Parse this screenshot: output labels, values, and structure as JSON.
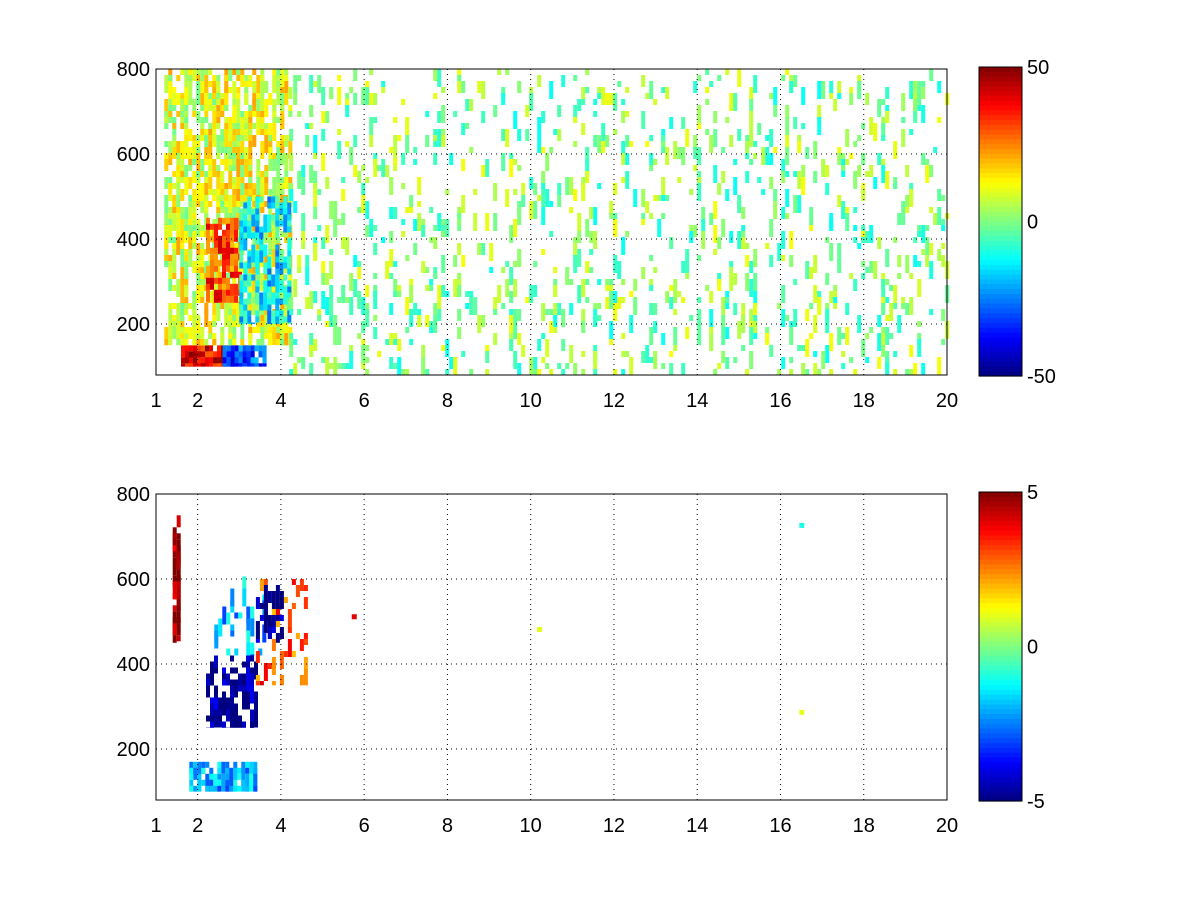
{
  "chart_data": [
    {
      "type": "heatmap",
      "title": "",
      "xlabel": "",
      "ylabel": "",
      "x_ticks": [
        "1",
        "2",
        "4",
        "6",
        "8",
        "10",
        "12",
        "14",
        "16",
        "18",
        "20"
      ],
      "x_tick_values": [
        1,
        2,
        4,
        6,
        8,
        10,
        12,
        14,
        16,
        18,
        20
      ],
      "y_ticks": [
        "200",
        "400",
        "600",
        "800"
      ],
      "y_tick_values": [
        200,
        400,
        600,
        800
      ],
      "xlim": [
        1,
        20
      ],
      "ylim": [
        80,
        800
      ],
      "grid": true,
      "grid_style": "dotted",
      "colormap": "jet",
      "colorbar": {
        "min": -50,
        "max": 50,
        "ticks": [
          "50",
          "0",
          "-50"
        ],
        "tick_values": [
          50,
          0,
          -50
        ],
        "placement": "right"
      },
      "regions": [
        {
          "x": [
            1.6,
            2.6
          ],
          "y": [
            100,
            150
          ],
          "value": 40,
          "density": 0.95
        },
        {
          "x": [
            2.6,
            3.6
          ],
          "y": [
            100,
            150
          ],
          "value": -30,
          "density": 0.9
        },
        {
          "x": [
            1.2,
            4.2
          ],
          "y": [
            150,
            800
          ],
          "value": 10,
          "density": 0.55
        },
        {
          "x": [
            2.2,
            3.0
          ],
          "y": [
            250,
            450
          ],
          "value": 30,
          "density": 0.6
        },
        {
          "x": [
            3.0,
            4.2
          ],
          "y": [
            200,
            500
          ],
          "value": -15,
          "density": 0.45
        },
        {
          "x": [
            4.2,
            20
          ],
          "y": [
            80,
            800
          ],
          "value": 0,
          "density": 0.12
        }
      ]
    },
    {
      "type": "heatmap",
      "title": "",
      "xlabel": "",
      "ylabel": "",
      "x_ticks": [
        "1",
        "2",
        "4",
        "6",
        "8",
        "10",
        "12",
        "14",
        "16",
        "18",
        "20"
      ],
      "x_tick_values": [
        1,
        2,
        4,
        6,
        8,
        10,
        12,
        14,
        16,
        18,
        20
      ],
      "y_ticks": [
        "200",
        "400",
        "600",
        "800"
      ],
      "y_tick_values": [
        200,
        400,
        600,
        800
      ],
      "xlim": [
        1,
        20
      ],
      "ylim": [
        80,
        800
      ],
      "grid": true,
      "grid_style": "dotted",
      "colormap": "jet",
      "colorbar": {
        "min": -5,
        "max": 5,
        "ticks": [
          "5",
          "0",
          "-5"
        ],
        "tick_values": [
          5,
          0,
          -5
        ],
        "placement": "right"
      },
      "regions": [
        {
          "x": [
            1.8,
            3.4
          ],
          "y": [
            100,
            170
          ],
          "value": -2,
          "density": 0.7
        },
        {
          "x": [
            2.2,
            3.4
          ],
          "y": [
            250,
            420
          ],
          "value": -5,
          "density": 0.45
        },
        {
          "x": [
            2.4,
            3.6
          ],
          "y": [
            420,
            620
          ],
          "value": -2,
          "density": 0.15
        },
        {
          "x": [
            3.4,
            4.6
          ],
          "y": [
            350,
            600
          ],
          "value": 3,
          "density": 0.2
        },
        {
          "x": [
            3.4,
            4.0
          ],
          "y": [
            450,
            600
          ],
          "value": -5,
          "density": 0.2
        },
        {
          "x": [
            1.4,
            1.5
          ],
          "y": [
            450,
            750
          ],
          "value": 5,
          "density": 0.6
        }
      ],
      "isolated_points": [
        {
          "x": 5.75,
          "y": 510,
          "value": 4
        },
        {
          "x": 10.2,
          "y": 480,
          "value": 1
        },
        {
          "x": 16.5,
          "y": 725,
          "value": -1
        },
        {
          "x": 16.5,
          "y": 285,
          "value": 1
        }
      ]
    }
  ]
}
